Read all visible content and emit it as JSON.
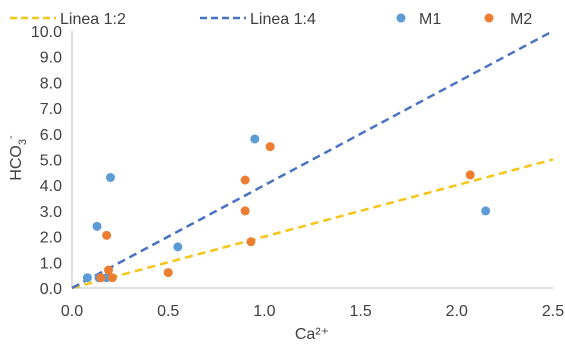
{
  "chart_data": {
    "type": "scatter",
    "xlabel": "Ca²⁺",
    "ylabel_main": "HCO",
    "ylabel_sub": "3",
    "ylabel_sup": "-",
    "xlim": [
      0,
      2.5
    ],
    "ylim": [
      0,
      10
    ],
    "x_ticks": [
      0,
      0.5,
      1.0,
      1.5,
      2.0,
      2.5
    ],
    "x_tick_labels": [
      "0.0",
      "0.5",
      "1.0",
      "1.5",
      "2.0",
      "2.5"
    ],
    "y_ticks": [
      0,
      1,
      2,
      3,
      4,
      5,
      6,
      7,
      8,
      9,
      10
    ],
    "y_tick_labels": [
      "0.0",
      "1.0",
      "2.0",
      "3.0",
      "4.0",
      "5.0",
      "6.0",
      "7.0",
      "8.0",
      "9.0",
      "10.0"
    ],
    "grid": false,
    "legend_position": "top",
    "lines": [
      {
        "name": "Linea 1:2",
        "color": "#f5c518",
        "style": "dashed",
        "slope": 2
      },
      {
        "name": "Linea 1:4",
        "color": "#4a72c4",
        "style": "dashed",
        "slope": 4
      }
    ],
    "series": [
      {
        "name": "M1",
        "color": "#5b9bd5",
        "points": [
          {
            "x": 0.08,
            "y": 0.4
          },
          {
            "x": 0.14,
            "y": 0.4
          },
          {
            "x": 0.18,
            "y": 0.4
          },
          {
            "x": 0.13,
            "y": 2.4
          },
          {
            "x": 0.2,
            "y": 4.3
          },
          {
            "x": 0.55,
            "y": 1.6
          },
          {
            "x": 0.95,
            "y": 5.8
          },
          {
            "x": 2.15,
            "y": 3.0
          }
        ]
      },
      {
        "name": "M2",
        "color": "#ed7d31",
        "points": [
          {
            "x": 0.15,
            "y": 0.4
          },
          {
            "x": 0.21,
            "y": 0.4
          },
          {
            "x": 0.19,
            "y": 0.7
          },
          {
            "x": 0.18,
            "y": 2.05
          },
          {
            "x": 0.5,
            "y": 0.6
          },
          {
            "x": 0.9,
            "y": 3.0
          },
          {
            "x": 0.9,
            "y": 4.2
          },
          {
            "x": 0.93,
            "y": 1.8
          },
          {
            "x": 1.03,
            "y": 5.5
          },
          {
            "x": 2.07,
            "y": 4.4
          }
        ]
      }
    ]
  }
}
